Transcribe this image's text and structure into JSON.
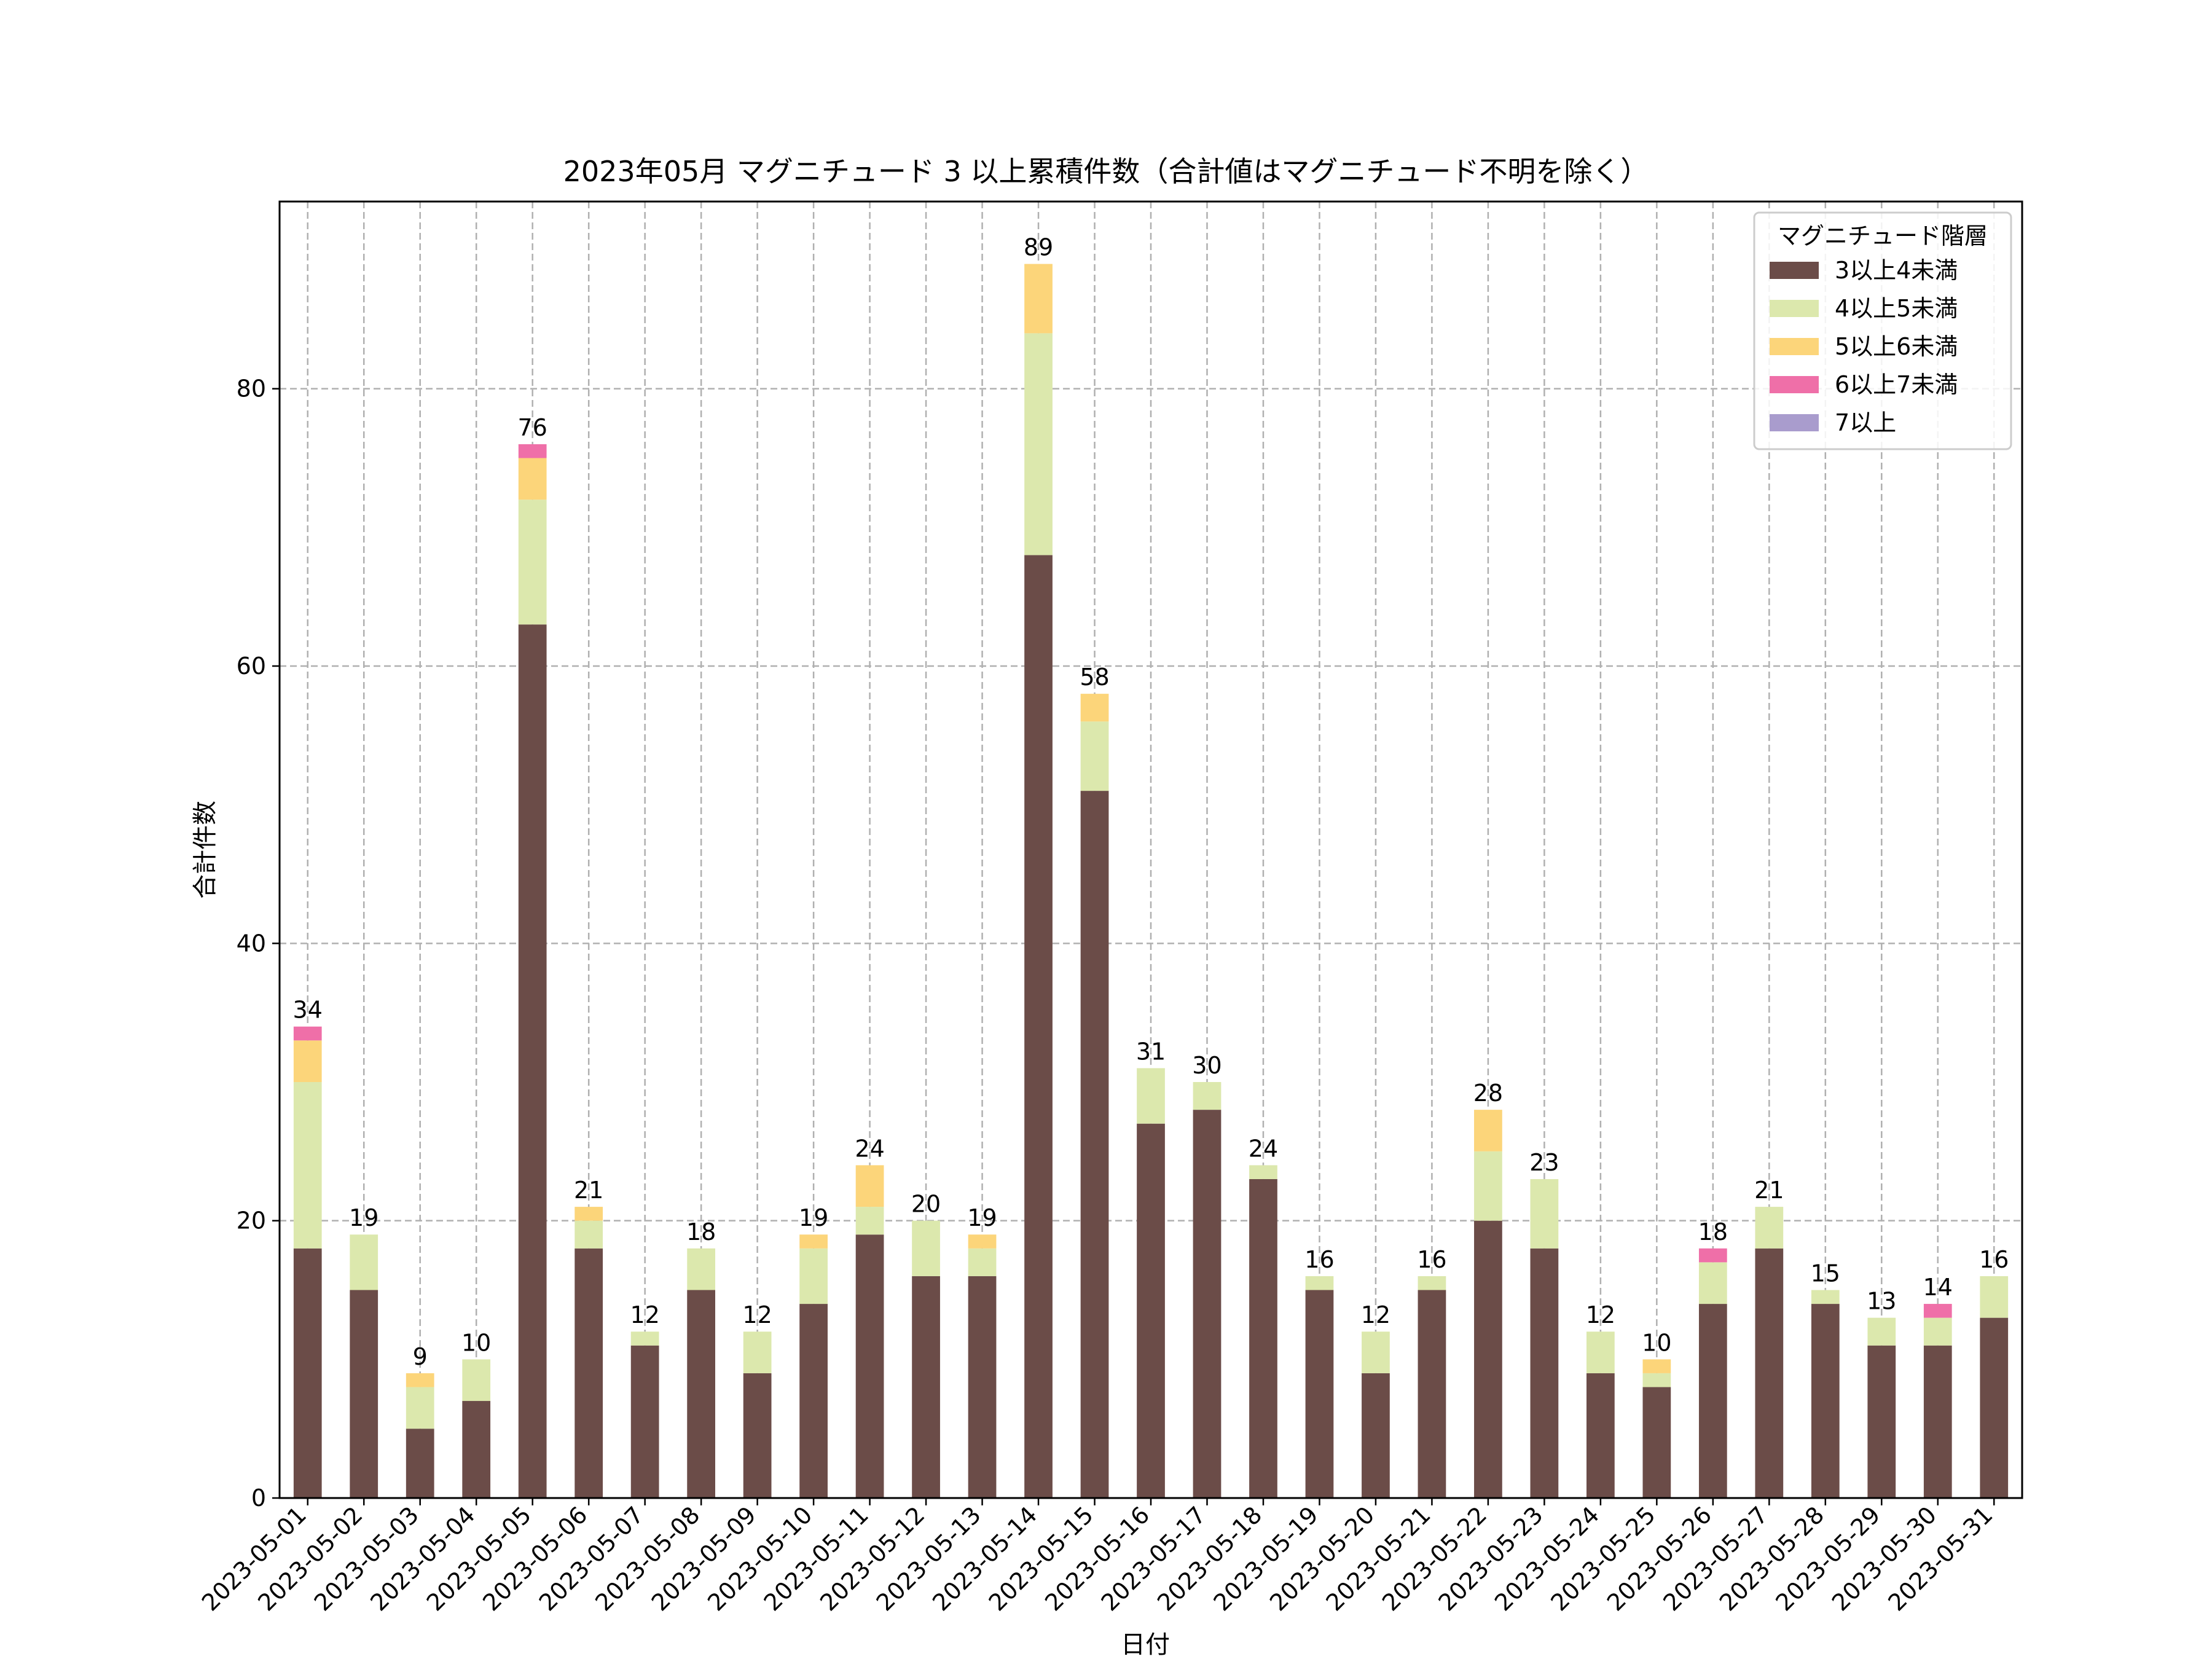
{
  "chart_data": {
    "type": "bar",
    "stacked": true,
    "title": "2023年05月 マグニチュード 3 以上累積件数（合計値はマグニチュード不明を除く）",
    "xlabel": "日付",
    "ylabel": "合計件数",
    "ylim": [
      0,
      93.5
    ],
    "yticks": [
      0,
      20,
      40,
      60,
      80
    ],
    "grid": true,
    "legend": {
      "title": "マグニチュード階層",
      "placement": "top-right"
    },
    "categories": [
      "2023-05-01",
      "2023-05-02",
      "2023-05-03",
      "2023-05-04",
      "2023-05-05",
      "2023-05-06",
      "2023-05-07",
      "2023-05-08",
      "2023-05-09",
      "2023-05-10",
      "2023-05-11",
      "2023-05-12",
      "2023-05-13",
      "2023-05-14",
      "2023-05-15",
      "2023-05-16",
      "2023-05-17",
      "2023-05-18",
      "2023-05-19",
      "2023-05-20",
      "2023-05-21",
      "2023-05-22",
      "2023-05-23",
      "2023-05-24",
      "2023-05-25",
      "2023-05-26",
      "2023-05-27",
      "2023-05-28",
      "2023-05-29",
      "2023-05-30",
      "2023-05-31"
    ],
    "series": [
      {
        "name": "3以上4未満",
        "color": "#6b4c48",
        "values": [
          18,
          15,
          5,
          7,
          63,
          18,
          11,
          15,
          9,
          14,
          19,
          16,
          16,
          68,
          51,
          27,
          28,
          23,
          15,
          9,
          15,
          20,
          18,
          9,
          8,
          14,
          18,
          14,
          11,
          11,
          13
        ]
      },
      {
        "name": "4以上5未満",
        "color": "#dce8ad",
        "values": [
          12,
          4,
          3,
          3,
          9,
          2,
          1,
          3,
          3,
          4,
          2,
          4,
          2,
          16,
          5,
          4,
          2,
          1,
          1,
          3,
          1,
          5,
          5,
          3,
          1,
          3,
          3,
          1,
          2,
          2,
          3
        ]
      },
      {
        "name": "5以上6未満",
        "color": "#fcd57a",
        "values": [
          3,
          0,
          1,
          0,
          3,
          1,
          0,
          0,
          0,
          1,
          3,
          0,
          1,
          5,
          2,
          0,
          0,
          0,
          0,
          0,
          0,
          3,
          0,
          0,
          1,
          0,
          0,
          0,
          0,
          0,
          0
        ]
      },
      {
        "name": "6以上7未満",
        "color": "#ef6fa8",
        "values": [
          1,
          0,
          0,
          0,
          1,
          0,
          0,
          0,
          0,
          0,
          0,
          0,
          0,
          0,
          0,
          0,
          0,
          0,
          0,
          0,
          0,
          0,
          0,
          0,
          0,
          1,
          0,
          0,
          0,
          1,
          0
        ]
      },
      {
        "name": "7以上",
        "color": "#a99ccd",
        "values": [
          0,
          0,
          0,
          0,
          0,
          0,
          0,
          0,
          0,
          0,
          0,
          0,
          0,
          0,
          0,
          0,
          0,
          0,
          0,
          0,
          0,
          0,
          0,
          0,
          0,
          0,
          0,
          0,
          0,
          0,
          0
        ]
      }
    ],
    "totals": [
      34,
      19,
      9,
      10,
      76,
      21,
      12,
      18,
      12,
      19,
      24,
      20,
      19,
      89,
      58,
      31,
      30,
      24,
      16,
      12,
      16,
      28,
      23,
      12,
      10,
      18,
      21,
      15,
      13,
      14,
      16
    ]
  }
}
